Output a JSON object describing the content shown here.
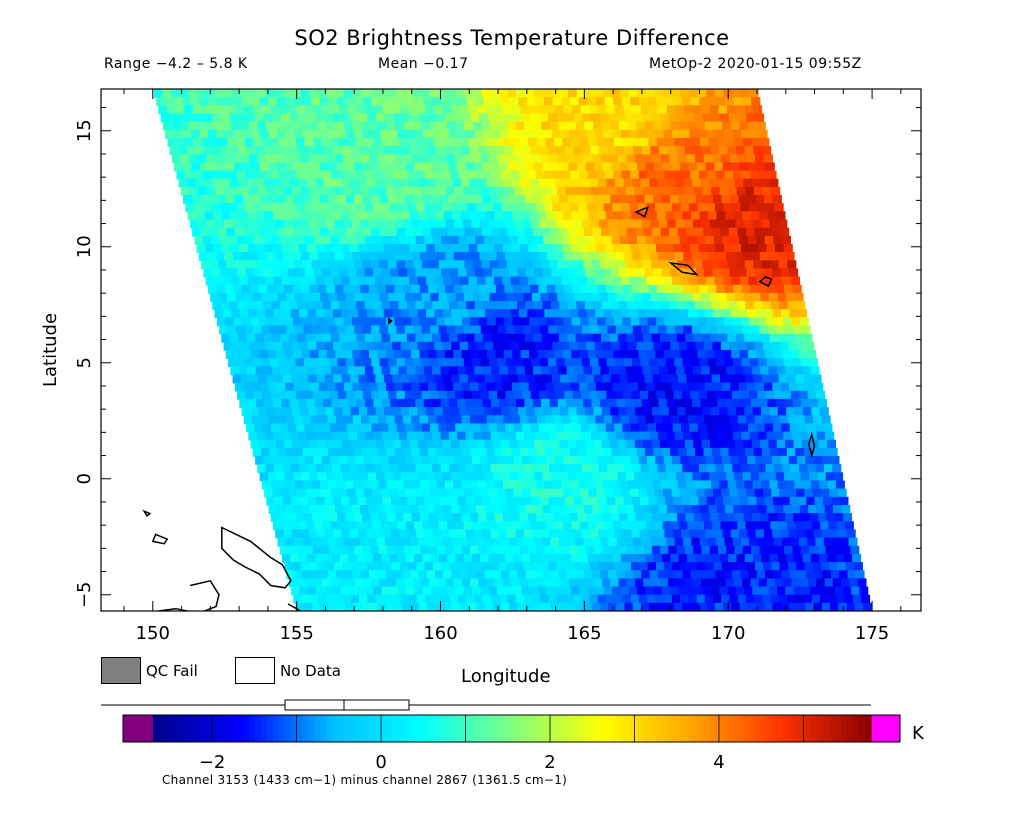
{
  "header": {
    "title": "SO2 Brightness Temperature Difference",
    "range": "Range −4.2 – 5.8 K",
    "mean": "Mean −0.17",
    "satellite_time": "MetOp-2 2020-01-15 09:55Z"
  },
  "legend": {
    "qc_fail": "QC Fail",
    "no_data": "No Data",
    "qc_fail_color": "#808080",
    "no_data_color": "#ffffff"
  },
  "chart_data": {
    "type": "heatmap",
    "title": "SO2 Brightness Temperature Difference",
    "xlabel": "Longitude",
    "ylabel": "Latitude",
    "xlim": [
      148.2,
      176.7
    ],
    "ylim": [
      -5.7,
      16.8
    ],
    "xticks": [
      150,
      155,
      160,
      165,
      170,
      175
    ],
    "yticks": [
      -5,
      0,
      5,
      10,
      15
    ],
    "colorbar": {
      "unit": "K",
      "vmin": -2.7,
      "vmax": 5.8,
      "ticks": [
        -2,
        0,
        2,
        4
      ],
      "tick_labels": [
        "−2",
        "0",
        "2",
        "4"
      ],
      "under_color": "#800080",
      "over_color": "#ff00ff",
      "colors": [
        "#00008b",
        "#0000ff",
        "#00bfff",
        "#00ffff",
        "#80ff80",
        "#ffff00",
        "#ffa500",
        "#ff3300",
        "#8b0000"
      ]
    },
    "swath_corners_lonlat": [
      [
        150.0,
        16.8
      ],
      [
        171.0,
        16.8
      ],
      [
        175.0,
        -5.7
      ],
      [
        155.0,
        -5.7
      ]
    ],
    "field_regions": [
      {
        "lon": 158,
        "lat": 13,
        "value": 1.2
      },
      {
        "lon": 166,
        "lat": 15,
        "value": 3.0
      },
      {
        "lon": 168,
        "lat": 13,
        "value": 4.2
      },
      {
        "lon": 171,
        "lat": 11,
        "value": 5.0
      },
      {
        "lon": 160,
        "lat": 8,
        "value": -0.8
      },
      {
        "lon": 162,
        "lat": 5,
        "value": -1.5
      },
      {
        "lon": 168,
        "lat": 4,
        "value": -1.6
      },
      {
        "lon": 164,
        "lat": 0,
        "value": 0.6
      },
      {
        "lon": 158,
        "lat": -3,
        "value": 0.2
      },
      {
        "lon": 170,
        "lat": -5,
        "value": -1.5
      }
    ],
    "footnote": "Channel 3153 (1433 cm−1) minus channel 2867 (1361.5 cm−1)"
  }
}
